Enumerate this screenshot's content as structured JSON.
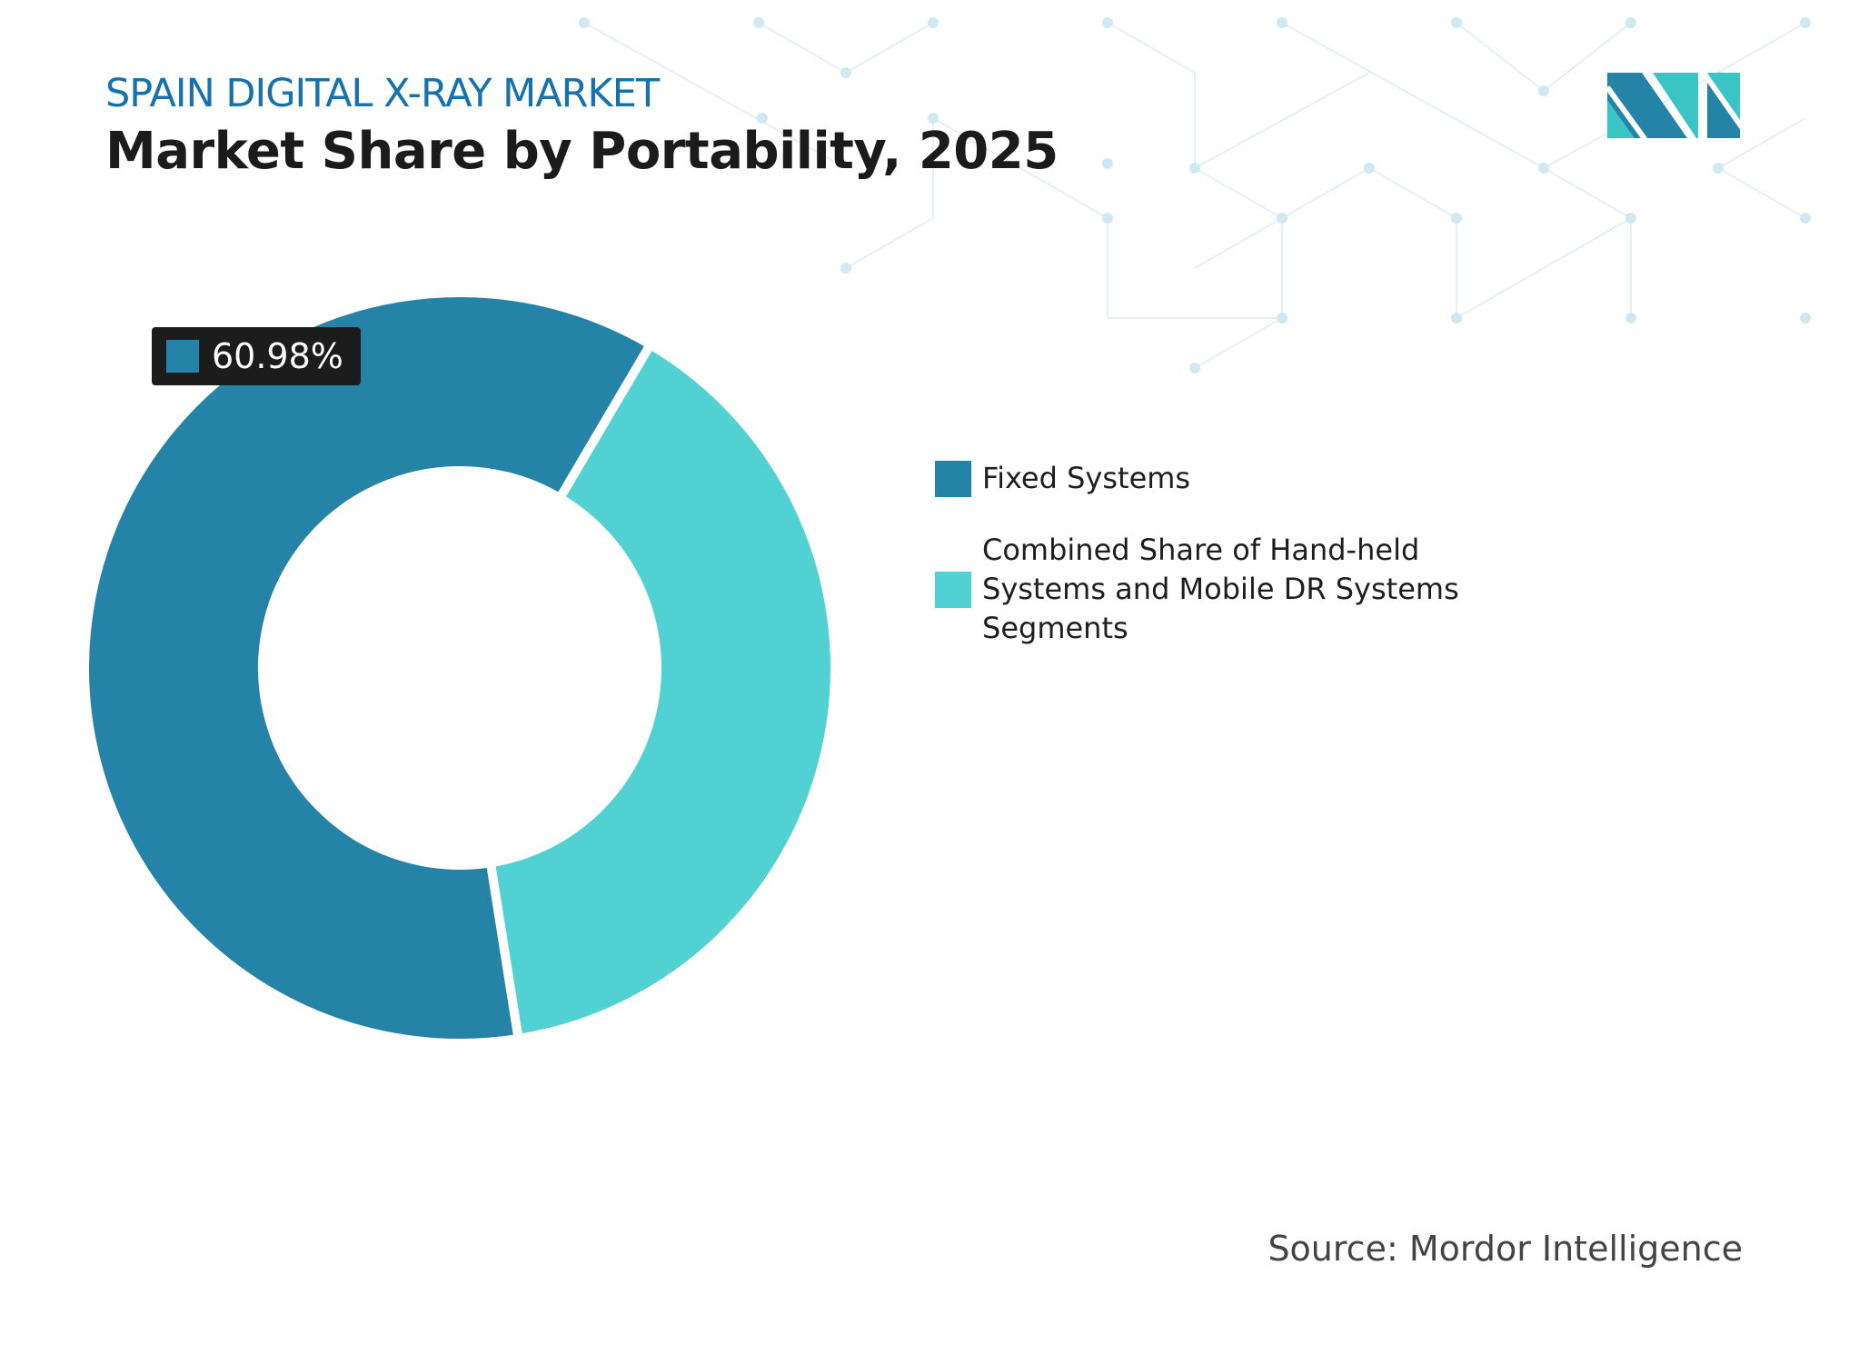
{
  "header": {
    "subtitle": "SPAIN DIGITAL X-RAY MARKET",
    "title": "Market Share by Portability, 2025"
  },
  "chart_data": {
    "type": "donut",
    "categories": [
      "Fixed Systems",
      "Combined Share of Hand-held Systems and Mobile DR Systems Segments"
    ],
    "values": [
      60.98,
      39.02
    ],
    "colors": [
      "#2683a8",
      "#52d1d2"
    ],
    "data_labels": [
      {
        "category": "Fixed Systems",
        "text": "60.98%"
      }
    ],
    "legend_position": "right"
  },
  "legend": {
    "items": [
      {
        "label": "Fixed Systems",
        "color": "#2683a8"
      },
      {
        "label": "Combined Share of Hand-held Systems and Mobile DR Systems Segments",
        "color": "#52d1d2"
      }
    ]
  },
  "callout": {
    "text": "60.98%"
  },
  "footer": {
    "source": "Source: Mordor Intelligence"
  },
  "logo": {
    "text": "Mordor Intelligence",
    "icon": "mordor-intelligence-logo"
  }
}
